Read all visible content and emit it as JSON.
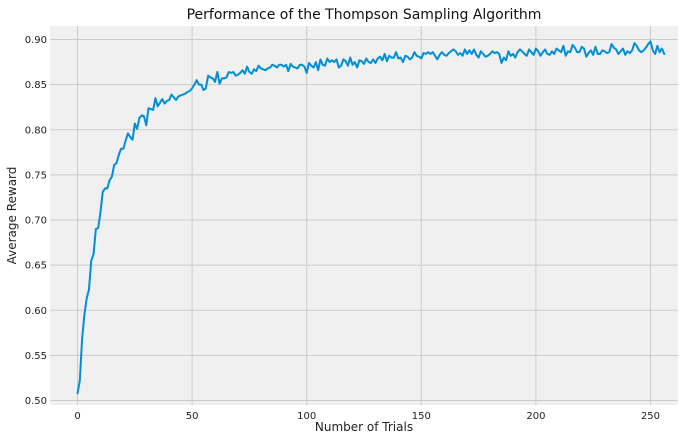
{
  "chart_data": {
    "type": "line",
    "title": "Performance of the Thompson Sampling Algorithm",
    "xlabel": "Number of Trials",
    "ylabel": "Average Reward",
    "xlim": [
      -12,
      262
    ],
    "ylim": [
      0.495,
      0.915
    ],
    "x_ticks": [
      0,
      50,
      100,
      150,
      200,
      250
    ],
    "y_ticks": [
      0.5,
      0.55,
      0.6,
      0.65,
      0.7,
      0.75,
      0.8,
      0.85,
      0.9
    ],
    "grid": true,
    "series": [
      {
        "color": "#008fd5",
        "values": [
          0.508,
          0.522,
          0.568,
          0.595,
          0.613,
          0.623,
          0.655,
          0.662,
          0.69,
          0.691,
          0.708,
          0.731,
          0.735,
          0.735,
          0.744,
          0.748,
          0.761,
          0.763,
          0.772,
          0.779,
          0.779,
          0.788,
          0.796,
          0.792,
          0.789,
          0.807,
          0.801,
          0.813,
          0.816,
          0.815,
          0.805,
          0.824,
          0.823,
          0.822,
          0.835,
          0.826,
          0.83,
          0.834,
          0.829,
          0.832,
          0.833,
          0.839,
          0.836,
          0.833,
          0.837,
          0.838,
          0.839,
          0.84,
          0.842,
          0.843,
          0.846,
          0.85,
          0.855,
          0.85,
          0.85,
          0.844,
          0.846,
          0.86,
          0.858,
          0.857,
          0.853,
          0.864,
          0.851,
          0.857,
          0.857,
          0.858,
          0.864,
          0.863,
          0.864,
          0.86,
          0.861,
          0.863,
          0.866,
          0.862,
          0.87,
          0.864,
          0.862,
          0.867,
          0.865,
          0.871,
          0.868,
          0.867,
          0.866,
          0.868,
          0.869,
          0.872,
          0.871,
          0.869,
          0.872,
          0.872,
          0.87,
          0.872,
          0.865,
          0.873,
          0.87,
          0.869,
          0.868,
          0.872,
          0.872,
          0.87,
          0.863,
          0.874,
          0.871,
          0.869,
          0.875,
          0.866,
          0.878,
          0.872,
          0.871,
          0.879,
          0.875,
          0.877,
          0.875,
          0.878,
          0.869,
          0.871,
          0.878,
          0.876,
          0.871,
          0.88,
          0.872,
          0.875,
          0.869,
          0.877,
          0.876,
          0.873,
          0.879,
          0.875,
          0.874,
          0.878,
          0.874,
          0.879,
          0.881,
          0.877,
          0.884,
          0.876,
          0.882,
          0.88,
          0.88,
          0.886,
          0.879,
          0.88,
          0.875,
          0.882,
          0.881,
          0.878,
          0.88,
          0.886,
          0.882,
          0.881,
          0.879,
          0.885,
          0.884,
          0.886,
          0.884,
          0.886,
          0.882,
          0.878,
          0.883,
          0.886,
          0.883,
          0.882,
          0.885,
          0.887,
          0.889,
          0.887,
          0.883,
          0.885,
          0.882,
          0.889,
          0.884,
          0.888,
          0.884,
          0.889,
          0.883,
          0.88,
          0.887,
          0.884,
          0.881,
          0.882,
          0.884,
          0.887,
          0.885,
          0.886,
          0.884,
          0.874,
          0.88,
          0.877,
          0.887,
          0.882,
          0.884,
          0.88,
          0.886,
          0.889,
          0.887,
          0.884,
          0.882,
          0.889,
          0.886,
          0.883,
          0.89,
          0.887,
          0.882,
          0.886,
          0.889,
          0.884,
          0.883,
          0.887,
          0.884,
          0.89,
          0.888,
          0.886,
          0.893,
          0.882,
          0.887,
          0.886,
          0.894,
          0.891,
          0.886,
          0.886,
          0.892,
          0.89,
          0.881,
          0.885,
          0.888,
          0.883,
          0.892,
          0.884,
          0.884,
          0.888,
          0.887,
          0.885,
          0.886,
          0.895,
          0.891,
          0.889,
          0.884,
          0.887,
          0.89,
          0.883,
          0.887,
          0.885,
          0.888,
          0.896,
          0.893,
          0.888,
          0.886,
          0.888,
          0.891,
          0.895,
          0.898,
          0.888,
          0.884,
          0.893,
          0.886,
          0.89,
          0.884
        ]
      }
    ]
  }
}
